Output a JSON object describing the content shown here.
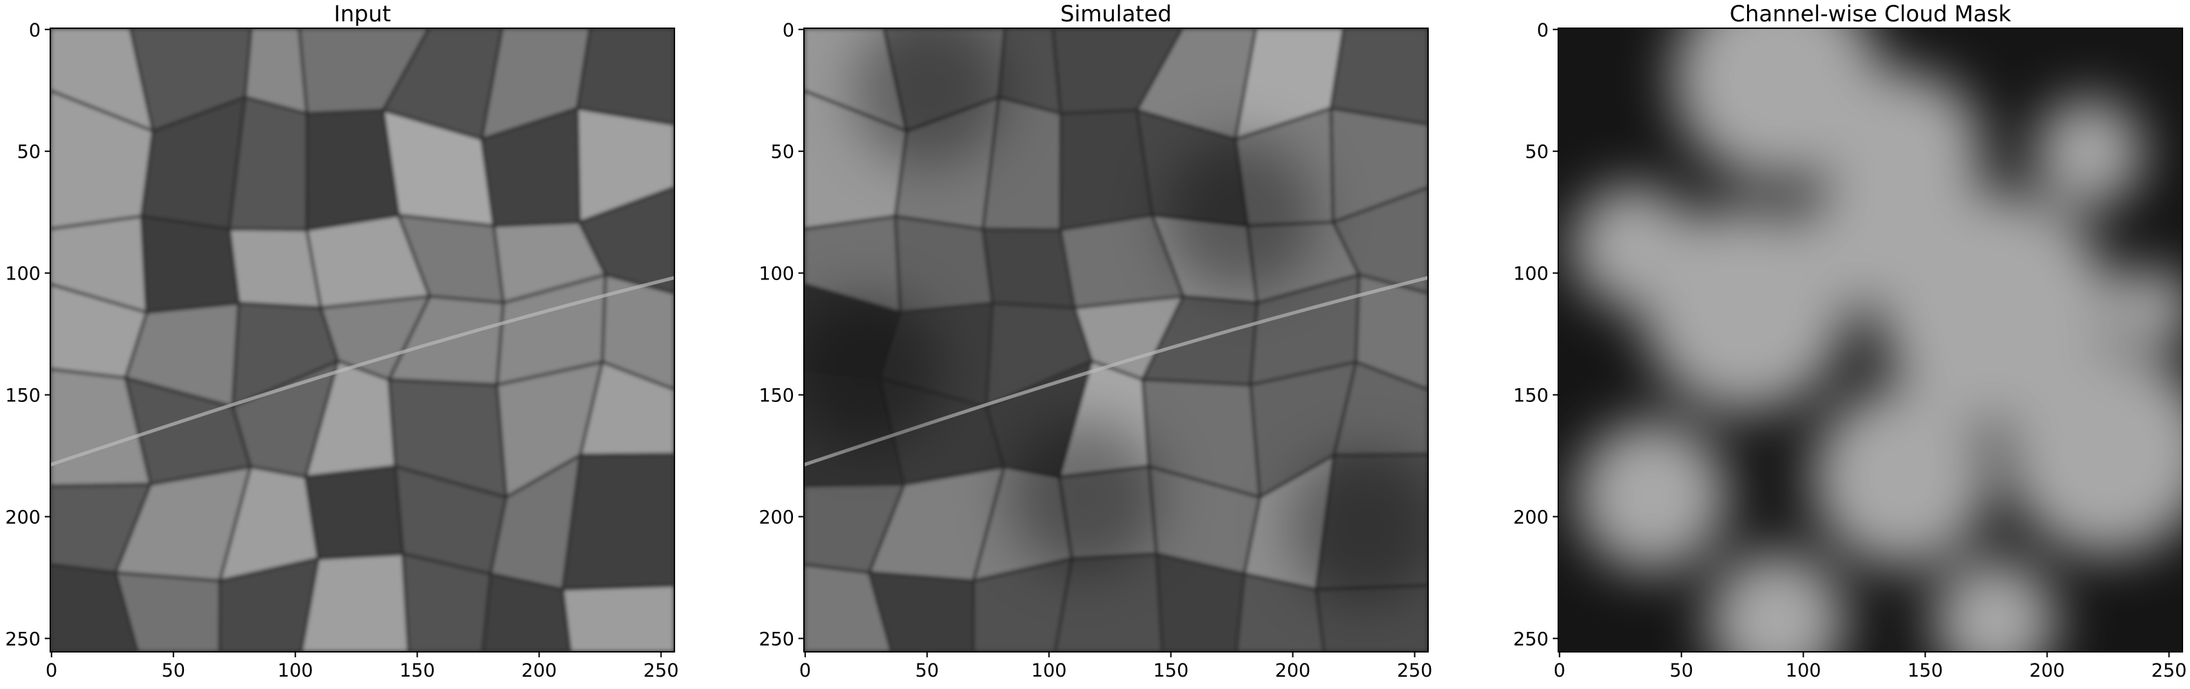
{
  "chart_data": [
    {
      "type": "image",
      "title": "Input",
      "xlim": [
        -0.5,
        255.5
      ],
      "ylim": [
        255.5,
        -0.5
      ],
      "xticks": [
        0,
        50,
        100,
        150,
        200,
        250
      ],
      "yticks": [
        0,
        50,
        100,
        150,
        200,
        250
      ]
    },
    {
      "type": "image",
      "title": "Simulated",
      "xlim": [
        -0.5,
        255.5
      ],
      "ylim": [
        255.5,
        -0.5
      ],
      "xticks": [
        0,
        50,
        100,
        150,
        200,
        250
      ],
      "yticks": [
        0,
        50,
        100,
        150,
        200,
        250
      ]
    },
    {
      "type": "image",
      "title": "Channel-wise Cloud Mask",
      "xlim": [
        -0.5,
        255.5
      ],
      "ylim": [
        255.5,
        -0.5
      ],
      "xticks": [
        0,
        50,
        100,
        150,
        200,
        250
      ],
      "yticks": [
        0,
        50,
        100,
        150,
        200,
        250
      ]
    }
  ]
}
